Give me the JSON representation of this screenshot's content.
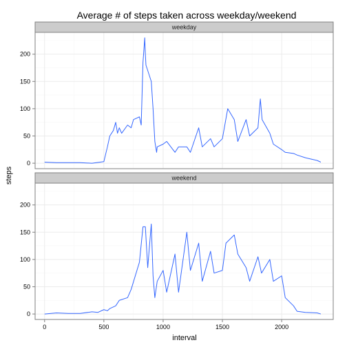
{
  "chart_data": {
    "type": "line",
    "title": "Average # of steps taken across weekday/weekend",
    "xlabel": "interval",
    "ylabel": "steps",
    "xlim": [
      -80,
      2435
    ],
    "ylim": [
      -10,
      240
    ],
    "x_ticks": [
      0,
      500,
      1000,
      1500,
      2000
    ],
    "y_ticks": [
      0,
      50,
      100,
      150,
      200
    ],
    "grid": true,
    "line_color": "#3366FF",
    "panels": [
      {
        "strip_label": "weekday",
        "series": [
          {
            "x": [
              0,
              100,
              200,
              300,
              400,
              500,
              530,
              550,
              580,
              600,
              615,
              630,
              650,
              700,
              730,
              750,
              800,
              815,
              830,
              845,
              850,
              855,
              900,
              915,
              930,
              945,
              950,
              1000,
              1030,
              1100,
              1130,
              1200,
              1230,
              1300,
              1330,
              1400,
              1430,
              1500,
              1545,
              1600,
              1630,
              1700,
              1730,
              1800,
              1820,
              1835,
              1900,
              1930,
              2000,
              2030,
              2100,
              2130,
              2200,
              2300,
              2330
            ],
            "y": [
              2,
              1,
              1,
              1,
              0,
              3,
              30,
              50,
              60,
              75,
              55,
              65,
              55,
              70,
              65,
              80,
              85,
              70,
              185,
              230,
              200,
              180,
              150,
              100,
              40,
              20,
              30,
              35,
              40,
              20,
              30,
              30,
              20,
              65,
              30,
              45,
              30,
              45,
              100,
              80,
              40,
              80,
              50,
              65,
              118,
              80,
              55,
              35,
              25,
              20,
              18,
              15,
              10,
              5,
              2
            ]
          }
        ]
      },
      {
        "strip_label": "weekend",
        "series": [
          {
            "x": [
              0,
              100,
              200,
              300,
              400,
              450,
              500,
              530,
              550,
              600,
              630,
              700,
              730,
              800,
              830,
              850,
              870,
              900,
              915,
              930,
              950,
              1000,
              1030,
              1100,
              1130,
              1200,
              1230,
              1300,
              1330,
              1400,
              1430,
              1500,
              1530,
              1600,
              1630,
              1700,
              1730,
              1800,
              1830,
              1900,
              1930,
              2000,
              2030,
              2100,
              2130,
              2200,
              2300,
              2330
            ],
            "y": [
              0,
              2,
              1,
              1,
              4,
              3,
              8,
              6,
              10,
              15,
              25,
              30,
              45,
              95,
              160,
              160,
              85,
              165,
              70,
              30,
              60,
              80,
              40,
              110,
              40,
              150,
              80,
              130,
              60,
              115,
              75,
              80,
              130,
              145,
              110,
              85,
              60,
              105,
              75,
              100,
              60,
              70,
              30,
              15,
              5,
              3,
              2,
              0
            ]
          }
        ]
      }
    ]
  }
}
